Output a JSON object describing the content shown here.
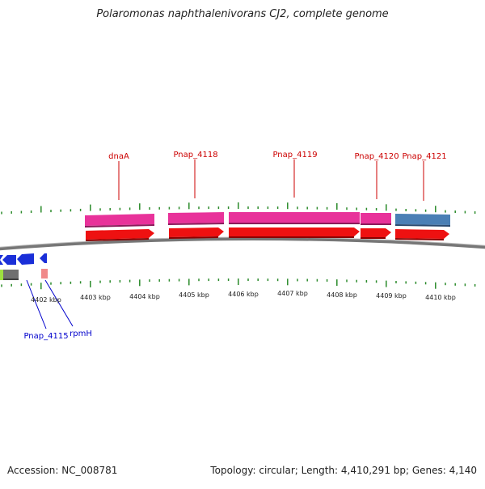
{
  "title": "Polaromonas naphthalenivorans CJ2, complete genome",
  "footer": {
    "accession": "Accession: NC_008781",
    "summary": "Topology: circular; Length: 4,410,291 bp; Genes: 4,140"
  },
  "kbp_labels": [
    "4402 kbp",
    "4403 kbp",
    "4404 kbp",
    "4405 kbp",
    "4406 kbp",
    "4407 kbp",
    "4408 kbp",
    "4409 kbp",
    "4410 kbp"
  ],
  "top_gene_labels": [
    "dnaA",
    "Pnap_4118",
    "Pnap_4119",
    "Pnap_4120",
    "Pnap_4121"
  ],
  "bottom_gene_labels": [
    "Pnap_4115",
    "rpmH"
  ],
  "colors": {
    "plus_label": "#cc0000",
    "minus_label": "#0000cc",
    "gene_pink": "#e8329a",
    "gene_blue": "#4a7fb5",
    "cds_red": "#ee1111",
    "cds_blue": "#1a2fd8",
    "tick_green": "#2a8a2a",
    "backbone": "#777777"
  }
}
